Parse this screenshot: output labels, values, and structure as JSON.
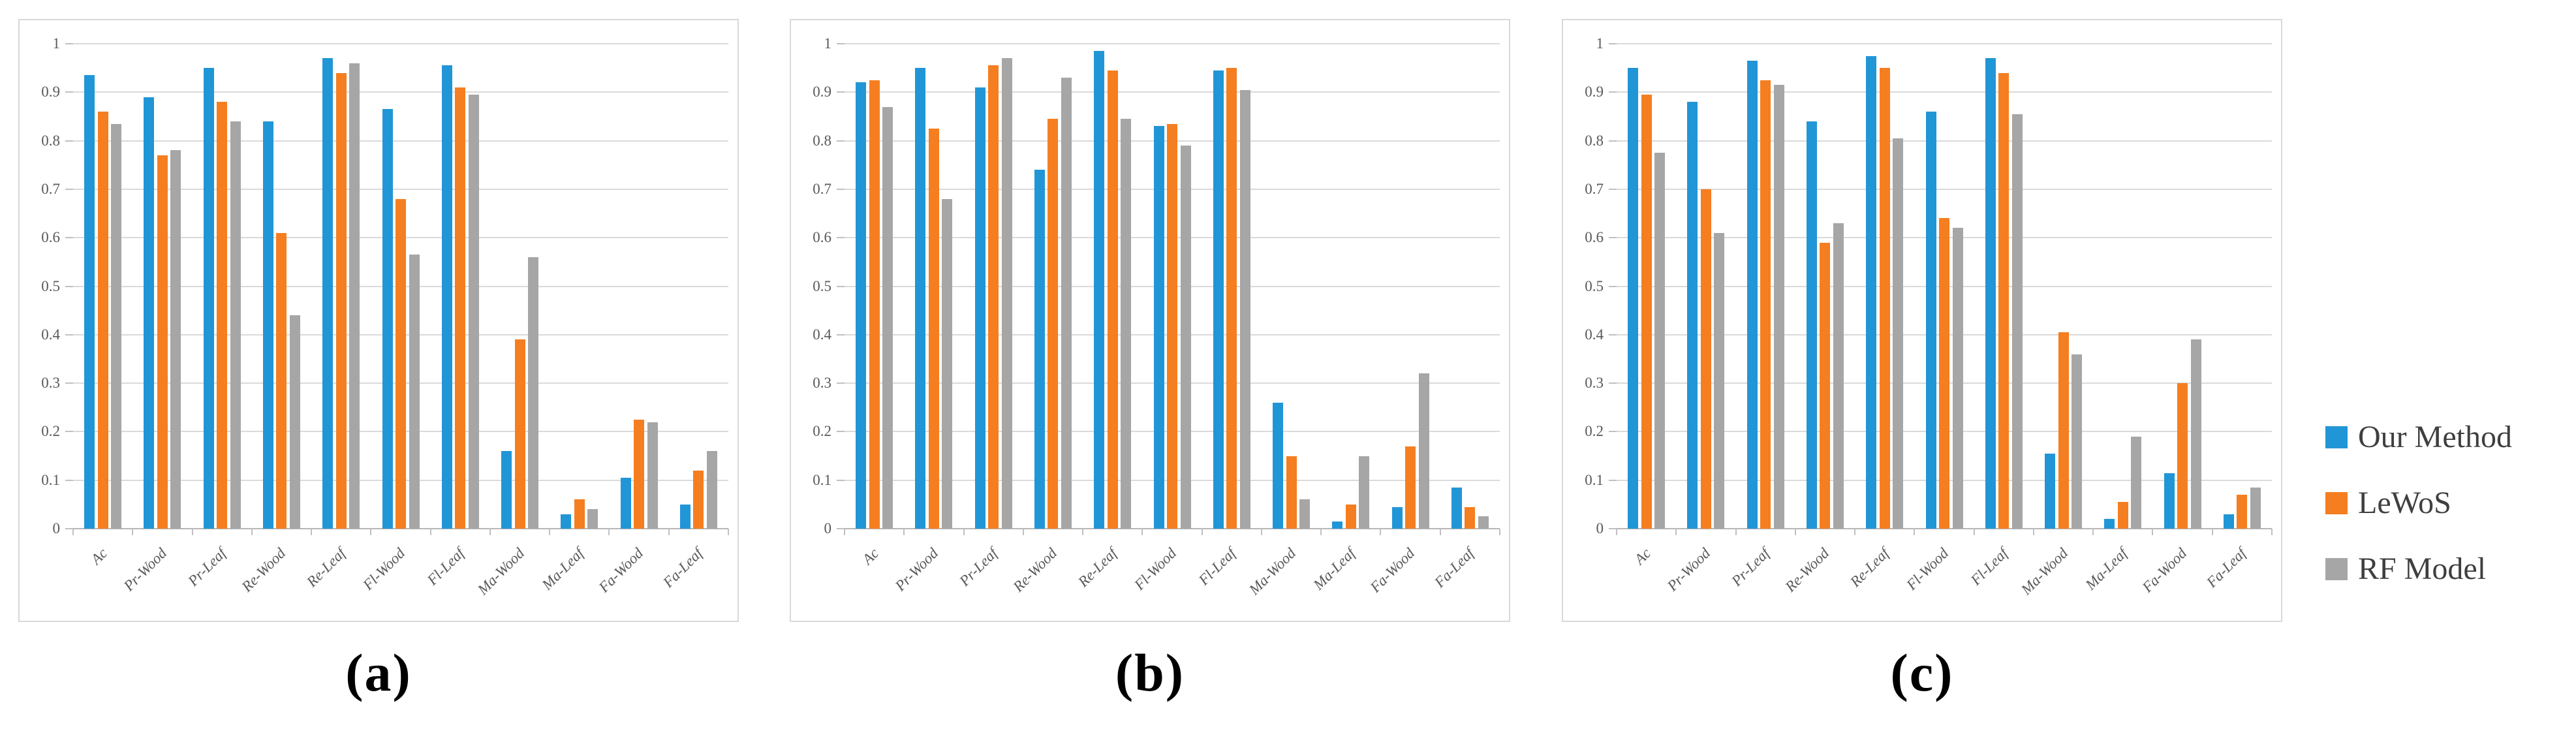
{
  "legend": {
    "items": [
      {
        "label": "Our Method",
        "color": "#2196d6"
      },
      {
        "label": "LeWoS",
        "color": "#f57e20"
      },
      {
        "label": "RF Model",
        "color": "#a6a6a6"
      }
    ]
  },
  "y_axis_ticks": [
    "1",
    "0.9",
    "0.8",
    "0.7",
    "0.6",
    "0.5",
    "0.4",
    "0.3",
    "0.2",
    "0.1",
    "0"
  ],
  "chart_data": [
    {
      "type": "bar",
      "caption": "(a)",
      "title": "",
      "xlabel": "",
      "ylabel": "",
      "ylim": [
        0,
        1
      ],
      "grid": true,
      "legend_position": "right-of-figure",
      "categories": [
        "Ac",
        "Pr-Wood",
        "Pr-Leaf",
        "Re-Wood",
        "Re-Leaf",
        "Fl-Wood",
        "Fl-Leaf",
        "Ma-Wood",
        "Ma-Leaf",
        "Fa-Wood",
        "Fa-Leaf"
      ],
      "series": [
        {
          "name": "Our Method",
          "color": "#2196d6",
          "values": [
            0.935,
            0.89,
            0.95,
            0.84,
            0.97,
            0.865,
            0.955,
            0.16,
            0.03,
            0.105,
            0.05
          ]
        },
        {
          "name": "LeWoS",
          "color": "#f57e20",
          "values": [
            0.86,
            0.77,
            0.88,
            0.61,
            0.94,
            0.68,
            0.91,
            0.39,
            0.06,
            0.225,
            0.12
          ]
        },
        {
          "name": "RF Model",
          "color": "#a6a6a6",
          "values": [
            0.835,
            0.78,
            0.84,
            0.44,
            0.96,
            0.565,
            0.895,
            0.56,
            0.04,
            0.22,
            0.16
          ]
        }
      ]
    },
    {
      "type": "bar",
      "caption": "(b)",
      "title": "",
      "xlabel": "",
      "ylabel": "",
      "ylim": [
        0,
        1
      ],
      "grid": true,
      "legend_position": "right-of-figure",
      "categories": [
        "Ac",
        "Pr-Wood",
        "Pr-Leaf",
        "Re-Wood",
        "Re-Leaf",
        "Fl-Wood",
        "Fl-Leaf",
        "Ma-Wood",
        "Ma-Leaf",
        "Fa-Wood",
        "Fa-Leaf"
      ],
      "series": [
        {
          "name": "Our Method",
          "color": "#2196d6",
          "values": [
            0.92,
            0.95,
            0.91,
            0.74,
            0.985,
            0.83,
            0.945,
            0.26,
            0.015,
            0.045,
            0.085
          ]
        },
        {
          "name": "LeWoS",
          "color": "#f57e20",
          "values": [
            0.925,
            0.825,
            0.955,
            0.845,
            0.945,
            0.835,
            0.95,
            0.15,
            0.05,
            0.17,
            0.045
          ]
        },
        {
          "name": "RF Model",
          "color": "#a6a6a6",
          "values": [
            0.87,
            0.68,
            0.97,
            0.93,
            0.845,
            0.79,
            0.905,
            0.06,
            0.15,
            0.32,
            0.025
          ]
        }
      ]
    },
    {
      "type": "bar",
      "caption": "(c)",
      "title": "",
      "xlabel": "",
      "ylabel": "",
      "ylim": [
        0,
        1
      ],
      "grid": true,
      "legend_position": "right-of-figure",
      "categories": [
        "Ac",
        "Pr-Wood",
        "Pr-Leaf",
        "Re-Wood",
        "Re-Leaf",
        "Fl-Wood",
        "Fl-Leaf",
        "Ma-Wood",
        "Ma-Leaf",
        "Fa-Wood",
        "Fa-Leaf"
      ],
      "series": [
        {
          "name": "Our Method",
          "color": "#2196d6",
          "values": [
            0.95,
            0.88,
            0.965,
            0.84,
            0.975,
            0.86,
            0.97,
            0.155,
            0.02,
            0.115,
            0.03
          ]
        },
        {
          "name": "LeWoS",
          "color": "#f57e20",
          "values": [
            0.895,
            0.7,
            0.925,
            0.59,
            0.95,
            0.64,
            0.94,
            0.405,
            0.055,
            0.3,
            0.07
          ]
        },
        {
          "name": "RF Model",
          "color": "#a6a6a6",
          "values": [
            0.775,
            0.61,
            0.915,
            0.63,
            0.805,
            0.62,
            0.855,
            0.36,
            0.19,
            0.39,
            0.085
          ]
        }
      ]
    }
  ]
}
